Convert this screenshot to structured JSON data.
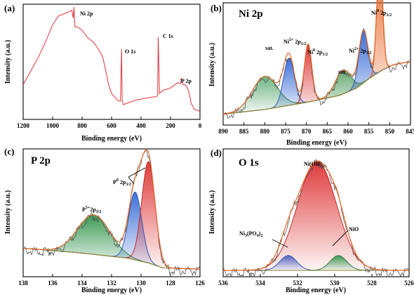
{
  "chart_data": [
    {
      "panel_label": "(a)",
      "type": "line",
      "title": "",
      "xlabel": "Binding energy (eV)",
      "ylabel": "Intensity (a.u.)",
      "xlim": [
        1200,
        0
      ],
      "x_ticks": [
        "1200",
        "1000",
        "800",
        "600",
        "400",
        "200",
        "0"
      ],
      "annotations": [
        "Ni 2p",
        "O 1s",
        "C 1s",
        "P 2p"
      ],
      "grid": false,
      "colors": {
        "survey": "#e3323b"
      },
      "series": [
        {
          "x": [
            1200,
            1150,
            1100,
            1050,
            1000,
            960,
            900,
            870,
            860,
            855,
            848,
            830,
            800,
            760,
            720,
            690,
            660,
            640,
            620,
            600,
            560,
            540,
            532,
            528,
            520,
            480,
            440,
            400,
            360,
            320,
            300,
            287,
            284,
            275,
            250,
            200,
            180,
            150,
            140,
            132,
            128,
            115,
            100,
            90,
            80,
            70,
            65,
            60,
            50,
            40,
            20,
            0
          ],
          "values": [
            0.3,
            0.42,
            0.54,
            0.68,
            0.84,
            0.92,
            0.95,
            0.97,
            0.9,
            1.0,
            0.82,
            0.82,
            0.79,
            0.72,
            0.68,
            0.62,
            0.55,
            0.43,
            0.3,
            0.22,
            0.16,
            0.15,
            0.62,
            0.16,
            0.12,
            0.14,
            0.16,
            0.17,
            0.18,
            0.19,
            0.19,
            0.2,
            0.73,
            0.22,
            0.25,
            0.27,
            0.29,
            0.32,
            0.31,
            0.31,
            0.36,
            0.3,
            0.3,
            0.28,
            0.25,
            0.2,
            0.17,
            0.13,
            0.11,
            0.08,
            0.07,
            0.06
          ]
        }
      ]
    },
    {
      "panel_label": "(b)",
      "type": "line",
      "title": "Ni 2p",
      "xlabel": "Binding energy (eV)",
      "ylabel": "Intensity (a.u.)",
      "xlim": [
        890,
        845
      ],
      "x_ticks": [
        "890",
        "885",
        "880",
        "875",
        "870",
        "865",
        "860",
        "855",
        "850",
        "845"
      ],
      "annotations": [
        "sat.",
        "Ni²⁺ 2p1/2",
        "Ni⁰ 2p1/2",
        "sat.",
        "Ni²⁺ 2p3/2",
        "Ni⁰ 2p3/2"
      ],
      "colors": {
        "sat_high": "#3c9a55",
        "ni2_high": "#3d6fd6",
        "ni0_high": "#df3b3b",
        "sat_low": "#4f9a5c",
        "ni2_low": "#3d6fd6",
        "ni0_low": "#e8682a",
        "background": "#8a8a35",
        "data": "#555555",
        "fit": "#e8682a"
      },
      "background": [
        [
          890,
          0.08
        ],
        [
          880,
          0.12
        ],
        [
          870,
          0.18
        ],
        [
          862,
          0.24
        ],
        [
          858,
          0.3
        ],
        [
          855,
          0.38
        ],
        [
          852,
          0.45
        ],
        [
          849,
          0.5
        ],
        [
          846,
          0.52
        ],
        [
          845,
          0.52
        ]
      ],
      "peaks": [
        {
          "name": "sat.",
          "center": 880.0,
          "height": 0.28,
          "width": 3.0
        },
        {
          "name": "Ni²⁺ 2p1/2",
          "center": 874.2,
          "height": 0.4,
          "width": 1.3
        },
        {
          "name": "Ni⁰ 2p1/2",
          "center": 869.6,
          "height": 0.49,
          "width": 0.9
        },
        {
          "name": "sat.",
          "center": 861.2,
          "height": 0.2,
          "width": 1.9
        },
        {
          "name": "Ni²⁺ 2p3/2",
          "center": 856.3,
          "height": 0.44,
          "width": 1.1
        },
        {
          "name": "Ni⁰ 2p3/2",
          "center": 852.4,
          "height": 0.94,
          "width": 0.7
        }
      ]
    },
    {
      "panel_label": "(c)",
      "type": "line",
      "title": "P 2p",
      "xlabel": "Binding energy (eV)",
      "ylabel": "Intensity (a.u.)",
      "xlim": [
        138,
        126
      ],
      "x_ticks": [
        "138",
        "136",
        "134",
        "132",
        "130",
        "128",
        "126"
      ],
      "annotations": [
        "P⁰ 2p3/2",
        "P⁵⁺2p3/2"
      ],
      "colors": {
        "p5": "#3c9a55",
        "p0_a": "#3d6fd6",
        "p0_b": "#df3b3b",
        "background": "#8a8a35",
        "data": "#555555",
        "fit": "#e8682a"
      },
      "background": [
        [
          138,
          0.22
        ],
        [
          134,
          0.18
        ],
        [
          131,
          0.14
        ],
        [
          129.5,
          0.1
        ],
        [
          128.5,
          0.06
        ],
        [
          126,
          0.05
        ]
      ],
      "peaks": [
        {
          "name": "P⁵⁺2p3/2",
          "center": 133.2,
          "height": 0.32,
          "width": 1.1
        },
        {
          "name": "P⁰ 2p3/2",
          "center": 130.4,
          "height": 0.55,
          "width": 0.45
        },
        {
          "name": "P⁰ 2p3/2",
          "center": 129.5,
          "height": 0.82,
          "width": 0.45
        }
      ]
    },
    {
      "panel_label": "(d)",
      "type": "line",
      "title": "O 1s",
      "xlabel": "Binding energy (eV)",
      "ylabel": "Intensity (a.u.)",
      "xlim": [
        536,
        526
      ],
      "x_ticks": [
        "536",
        "534",
        "532",
        "530",
        "528",
        "526"
      ],
      "annotations": [
        "Ni3(PO4)2",
        "Ni(OH)2",
        "NiO"
      ],
      "colors": {
        "nioh": "#df3b3b",
        "nipo": "#3d6fd6",
        "nio": "#3c9a55",
        "background": "#8a8a35",
        "data": "#555555",
        "fit": "#e8682a"
      },
      "background": [
        [
          536,
          0.04
        ],
        [
          526,
          0.04
        ]
      ],
      "peaks": [
        {
          "name": "Ni3(PO4)2",
          "center": 532.5,
          "height": 0.12,
          "width": 0.45
        },
        {
          "name": "Ni(OH)2",
          "center": 530.95,
          "height": 0.88,
          "width": 1.05
        },
        {
          "name": "NiO",
          "center": 529.8,
          "height": 0.12,
          "width": 0.45
        }
      ]
    }
  ]
}
